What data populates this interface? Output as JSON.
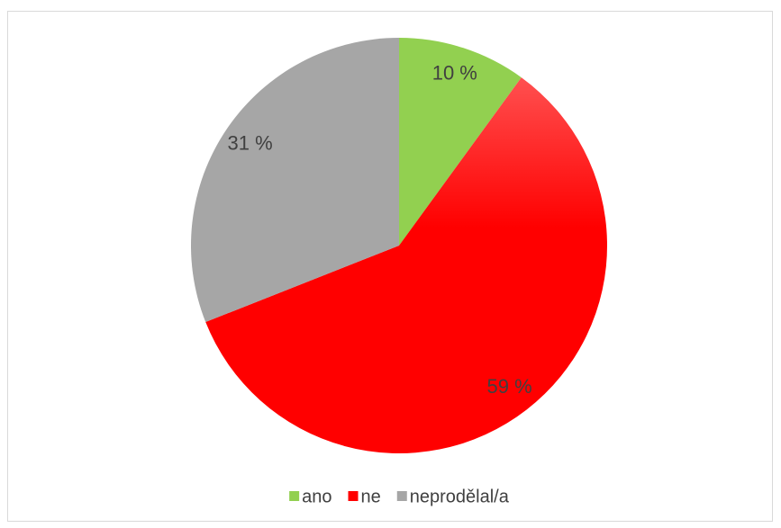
{
  "chart_data": {
    "type": "pie",
    "categories": [
      "ano",
      "ne",
      "neprodělal/a"
    ],
    "values": [
      10,
      59,
      31
    ],
    "value_labels": [
      "10 %",
      "59 %",
      "31 %"
    ],
    "colors": [
      "#92d050",
      "#ff0000",
      "#a6a6a6"
    ],
    "legend": "bottom"
  }
}
